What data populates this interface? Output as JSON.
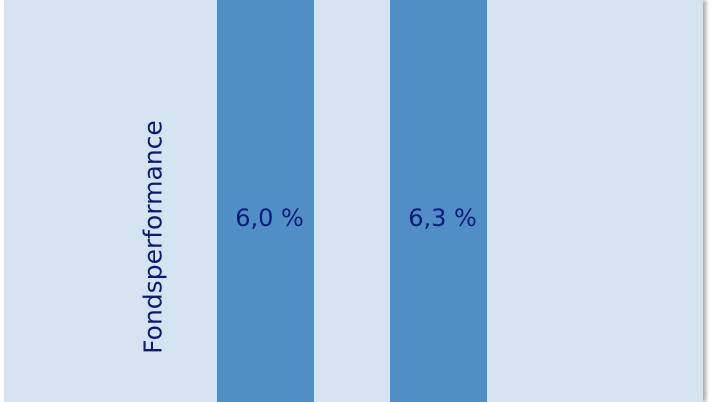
{
  "chart_data": {
    "type": "bar",
    "categories": [
      "",
      ""
    ],
    "values": [
      6.0,
      6.3
    ],
    "data_labels": [
      "6,0 %",
      "6,3 %"
    ],
    "title": "",
    "xlabel": "",
    "ylabel": "Fondsperformance",
    "grid": false,
    "colors": {
      "background": "#d6e3f0",
      "bar": "#4f8fc6",
      "text": "#0a1a7a"
    }
  }
}
